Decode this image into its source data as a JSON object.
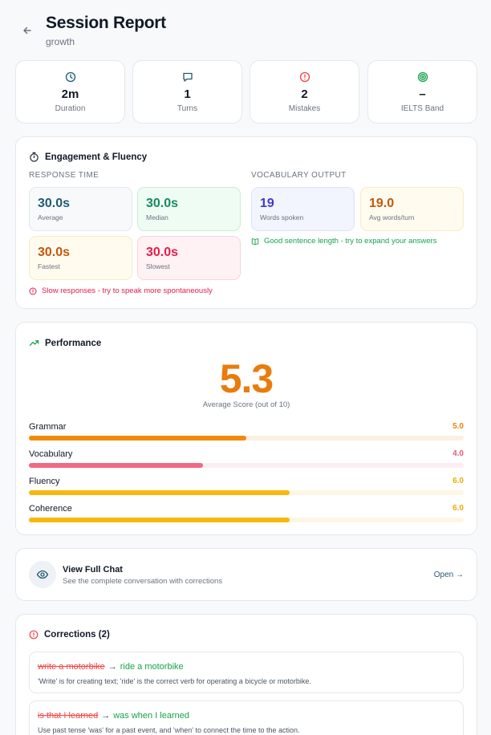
{
  "header": {
    "title": "Session Report",
    "subtitle": "growth"
  },
  "stats": [
    {
      "icon": "clock-icon",
      "value": "2m",
      "label": "Duration",
      "color": "#1f5a74"
    },
    {
      "icon": "chat-bubble-icon",
      "value": "1",
      "label": "Turns",
      "color": "#1f5a74"
    },
    {
      "icon": "alert-circle-icon",
      "value": "2",
      "label": "Mistakes",
      "color": "#ef4444"
    },
    {
      "icon": "target-icon",
      "value": "–",
      "label": "IELTS Band",
      "color": "#16a34a"
    }
  ],
  "engagement": {
    "title": "Engagement & Fluency",
    "response_label": "RESPONSE TIME",
    "vocab_label": "VOCABULARY OUTPUT",
    "response": [
      {
        "value": "30.0s",
        "label": "Average"
      },
      {
        "value": "30.0s",
        "label": "Median"
      },
      {
        "value": "30.0s",
        "label": "Fastest"
      },
      {
        "value": "30.0s",
        "label": "Slowest"
      }
    ],
    "vocab": [
      {
        "value": "19",
        "label": "Words spoken"
      },
      {
        "value": "19.0",
        "label": "Avg words/turn"
      }
    ],
    "response_note": "Slow responses - try to speak more spontaneously",
    "vocab_note": "Good sentence length - try to expand your answers"
  },
  "performance": {
    "title": "Performance",
    "score": "5.3",
    "score_label": "Average Score (out of 10)",
    "bars": [
      {
        "name": "Grammar",
        "value": "5.0",
        "fraction": 0.5,
        "color": "#f18a0a",
        "track": "#fdf0e3",
        "text_color": "#e9830a"
      },
      {
        "name": "Vocabulary",
        "value": "4.0",
        "fraction": 0.4,
        "color": "#f06a85",
        "track": "#fdeef1",
        "text_color": "#ec5a77"
      },
      {
        "name": "Fluency",
        "value": "6.0",
        "fraction": 0.6,
        "color": "#f8b70e",
        "track": "#fef6e4",
        "text_color": "#eeab0a"
      },
      {
        "name": "Coherence",
        "value": "6.0",
        "fraction": 0.6,
        "color": "#f8b70e",
        "track": "#fef6e4",
        "text_color": "#eeab0a"
      }
    ]
  },
  "chat": {
    "title": "View Full Chat",
    "subtitle": "See the complete conversation with corrections",
    "open_label": "Open →"
  },
  "corrections": {
    "title": "Corrections (2)",
    "items": [
      {
        "wrong": "write a motorbike",
        "right": "ride a motorbike",
        "explanation": "'Write' is for creating text; 'ride' is the correct verb for operating a bicycle or motorbike."
      },
      {
        "wrong": "is that I learned",
        "right": "was when I learned",
        "explanation": "Use past tense 'was' for a past event, and 'when' to connect the time to the action."
      }
    ]
  }
}
